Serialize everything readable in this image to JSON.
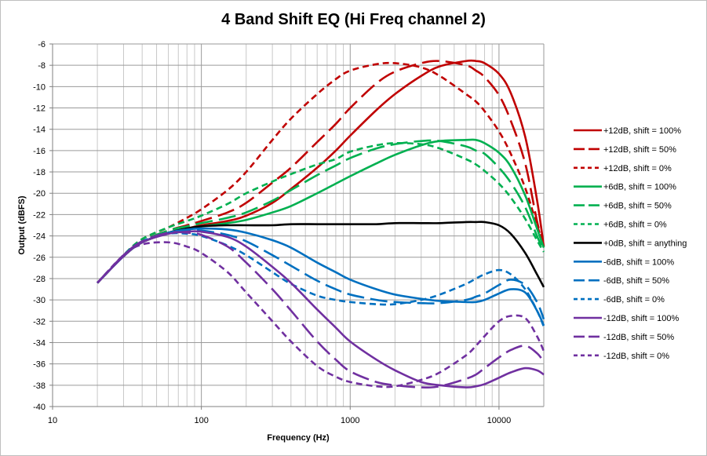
{
  "chart_data": {
    "type": "line",
    "title": "4 Band Shift EQ (Hi Freq channel 2)",
    "xlabel": "Frequency (Hz)",
    "ylabel": "Output (dBFS)",
    "x_scale": "log",
    "xlim": [
      10,
      20000
    ],
    "ylim": [
      -40,
      -6
    ],
    "x_ticks": [
      "10",
      "100",
      "1000",
      "10000"
    ],
    "y_ticks": [
      "-6",
      "-8",
      "-10",
      "-12",
      "-14",
      "-16",
      "-18",
      "-20",
      "-22",
      "-24",
      "-26",
      "-28",
      "-30",
      "-32",
      "-34",
      "-36",
      "-38",
      "-40"
    ],
    "grid": "major and minor vertical, major horizontal",
    "legend_position": "right",
    "x": [
      20,
      30,
      40,
      60,
      80,
      100,
      150,
      200,
      300,
      400,
      600,
      800,
      1000,
      1500,
      2000,
      3000,
      4000,
      6000,
      7000,
      8000,
      10000,
      12000,
      15000,
      18000,
      20000
    ],
    "series": [
      {
        "name": "+12dB, shift = 100%",
        "color": "#c00000",
        "dash": "solid",
        "values": [
          -28.4,
          -25.9,
          -24.6,
          -23.7,
          -23.3,
          -23.0,
          -22.6,
          -22.1,
          -20.9,
          -19.6,
          -17.6,
          -16.0,
          -14.6,
          -12.2,
          -10.7,
          -9.0,
          -8.1,
          -7.6,
          -7.6,
          -7.8,
          -8.8,
          -10.6,
          -14.7,
          -20.6,
          -25.0
        ]
      },
      {
        "name": "+12dB, shift = 50%",
        "color": "#c00000",
        "dash": "longdash",
        "values": [
          -28.4,
          -25.9,
          -24.5,
          -23.5,
          -23.0,
          -22.6,
          -21.8,
          -20.9,
          -19.0,
          -17.6,
          -15.2,
          -13.5,
          -12.0,
          -9.7,
          -8.6,
          -7.8,
          -7.6,
          -8.0,
          -8.5,
          -9.1,
          -10.8,
          -13.2,
          -17.2,
          -22.6,
          -25.0
        ]
      },
      {
        "name": "+12dB, shift = 0%",
        "color": "#c00000",
        "dash": "shortdash",
        "values": [
          -28.4,
          -25.8,
          -24.3,
          -23.2,
          -22.3,
          -21.5,
          -19.7,
          -18.0,
          -15.0,
          -13.0,
          -10.7,
          -9.3,
          -8.5,
          -7.9,
          -7.8,
          -8.2,
          -9.0,
          -10.7,
          -11.4,
          -12.3,
          -14.2,
          -16.3,
          -19.5,
          -23.0,
          -24.8
        ]
      },
      {
        "name": "+6dB, shift = 100%",
        "color": "#00b050",
        "dash": "solid",
        "values": [
          -28.4,
          -25.9,
          -24.6,
          -23.7,
          -23.3,
          -23.1,
          -22.8,
          -22.5,
          -21.8,
          -21.2,
          -20.0,
          -19.1,
          -18.4,
          -17.2,
          -16.4,
          -15.5,
          -15.1,
          -15.0,
          -15.0,
          -15.3,
          -16.2,
          -17.5,
          -20.2,
          -23.3,
          -25.1
        ]
      },
      {
        "name": "+6dB, shift = 50%",
        "color": "#00b050",
        "dash": "longdash",
        "values": [
          -28.4,
          -25.9,
          -24.5,
          -23.5,
          -23.1,
          -22.8,
          -22.3,
          -21.8,
          -20.7,
          -19.7,
          -18.3,
          -17.4,
          -16.7,
          -15.8,
          -15.4,
          -15.1,
          -15.1,
          -15.6,
          -16.0,
          -16.3,
          -17.6,
          -19.0,
          -21.3,
          -24.0,
          -25.4
        ]
      },
      {
        "name": "+6dB, shift = 0%",
        "color": "#00b050",
        "dash": "shortdash",
        "values": [
          -28.4,
          -25.8,
          -24.3,
          -23.2,
          -22.6,
          -22.1,
          -21.0,
          -20.0,
          -18.9,
          -18.2,
          -17.3,
          -16.8,
          -16.1,
          -15.5,
          -15.3,
          -15.4,
          -15.8,
          -16.8,
          -17.3,
          -17.9,
          -19.1,
          -20.4,
          -22.4,
          -24.4,
          -25.5
        ]
      },
      {
        "name": "+0dB, shift = anything",
        "color": "#000000",
        "dash": "solid",
        "values": [
          -28.4,
          -25.9,
          -24.6,
          -23.7,
          -23.3,
          -23.1,
          -23.0,
          -23.0,
          -23.0,
          -22.9,
          -22.9,
          -22.9,
          -22.9,
          -22.9,
          -22.8,
          -22.8,
          -22.8,
          -22.7,
          -22.7,
          -22.7,
          -23.0,
          -23.8,
          -25.6,
          -27.6,
          -28.8
        ]
      },
      {
        "name": "-6dB, shift = 100%",
        "color": "#0070c0",
        "dash": "solid",
        "values": [
          -28.4,
          -25.9,
          -24.6,
          -23.7,
          -23.4,
          -23.3,
          -23.4,
          -23.7,
          -24.4,
          -25.1,
          -26.5,
          -27.4,
          -28.1,
          -29.0,
          -29.5,
          -29.9,
          -30.1,
          -30.2,
          -30.2,
          -30.0,
          -29.4,
          -29.0,
          -29.3,
          -31.0,
          -32.4
        ]
      },
      {
        "name": "-6dB, shift = 50%",
        "color": "#0070c0",
        "dash": "longdash",
        "values": [
          -28.4,
          -25.9,
          -24.5,
          -23.7,
          -23.5,
          -23.5,
          -23.9,
          -24.5,
          -25.8,
          -26.8,
          -28.2,
          -29.0,
          -29.5,
          -30.0,
          -30.2,
          -30.3,
          -30.3,
          -30.0,
          -29.7,
          -29.4,
          -28.6,
          -28.1,
          -28.6,
          -30.2,
          -31.8
        ]
      },
      {
        "name": "-6dB, shift = 0%",
        "color": "#0070c0",
        "dash": "shortdash",
        "values": [
          -28.4,
          -25.8,
          -24.5,
          -23.8,
          -23.8,
          -24.0,
          -24.9,
          -25.8,
          -27.4,
          -28.5,
          -29.6,
          -30.0,
          -30.2,
          -30.4,
          -30.4,
          -30.0,
          -29.5,
          -28.5,
          -28.0,
          -27.6,
          -27.2,
          -27.6,
          -29.0,
          -31.0,
          -32.5
        ]
      },
      {
        "name": "-12dB, shift = 100%",
        "color": "#7030a0",
        "dash": "solid",
        "values": [
          -28.4,
          -25.9,
          -24.6,
          -23.8,
          -23.6,
          -23.6,
          -24.1,
          -25.0,
          -26.9,
          -28.4,
          -30.9,
          -32.6,
          -33.9,
          -35.6,
          -36.6,
          -37.7,
          -38.0,
          -38.2,
          -38.1,
          -37.9,
          -37.3,
          -36.8,
          -36.4,
          -36.6,
          -37.0
        ]
      },
      {
        "name": "-12dB, shift = 50%",
        "color": "#7030a0",
        "dash": "longdash",
        "values": [
          -28.4,
          -25.8,
          -24.5,
          -23.7,
          -23.7,
          -23.9,
          -25.0,
          -26.5,
          -29.0,
          -31.0,
          -33.9,
          -35.6,
          -36.7,
          -37.7,
          -38.0,
          -38.2,
          -38.1,
          -37.4,
          -37.0,
          -36.4,
          -35.4,
          -34.7,
          -34.3,
          -35.0,
          -35.8
        ]
      },
      {
        "name": "-12dB, shift = 0%",
        "color": "#7030a0",
        "dash": "shortdash",
        "values": [
          -28.4,
          -25.8,
          -24.8,
          -24.6,
          -25.0,
          -25.6,
          -27.4,
          -29.3,
          -32.0,
          -33.9,
          -36.2,
          -37.2,
          -37.7,
          -38.1,
          -38.1,
          -37.5,
          -36.8,
          -35.2,
          -34.3,
          -33.4,
          -32.0,
          -31.5,
          -31.7,
          -33.4,
          -34.8
        ]
      }
    ]
  }
}
